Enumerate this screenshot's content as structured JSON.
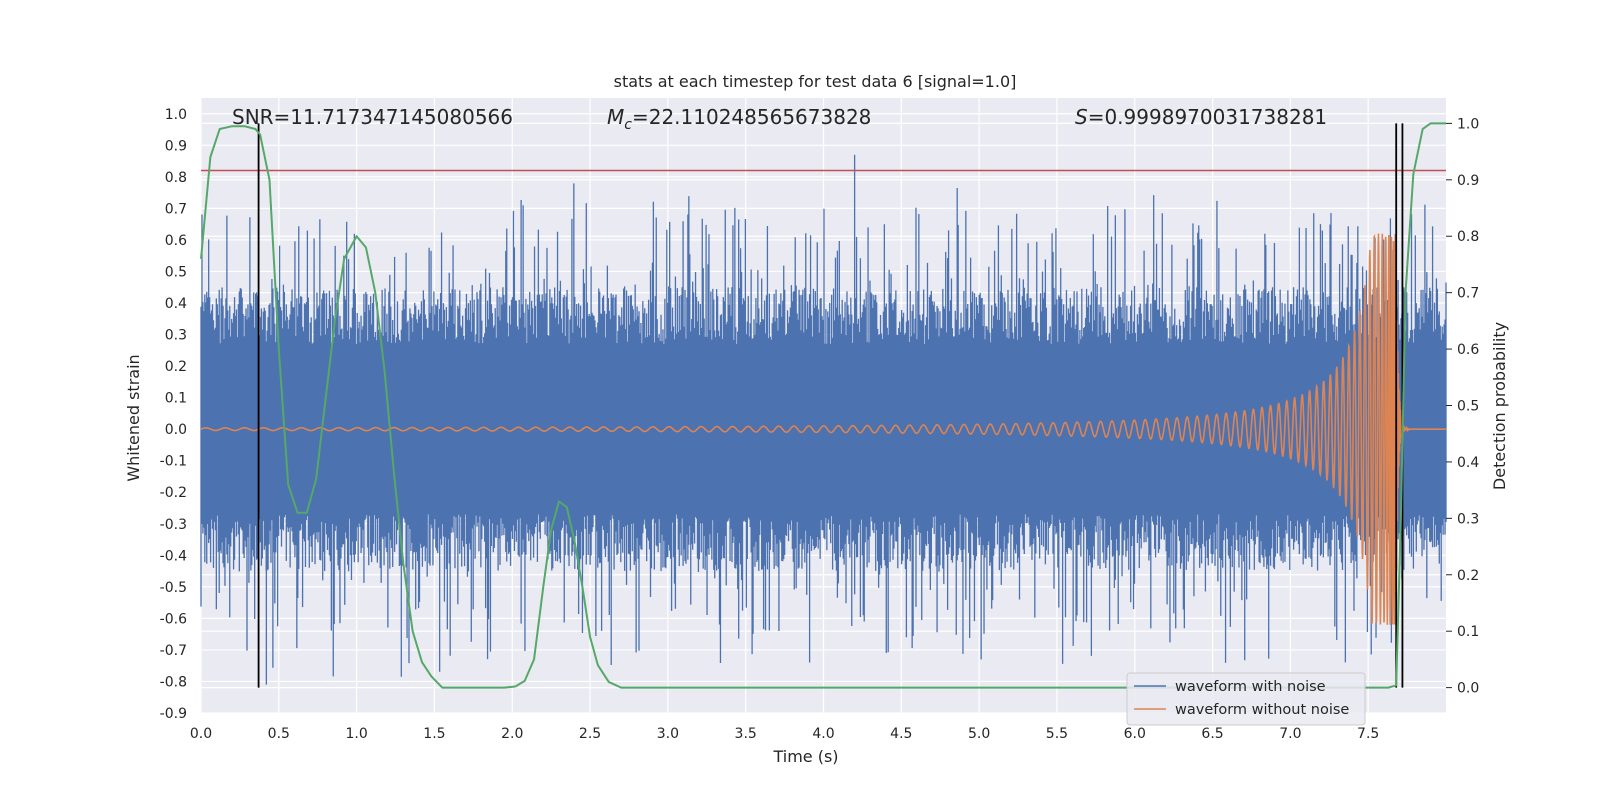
{
  "chart_data": {
    "type": "line",
    "title": "stats at each timestep for test data 6 [signal=1.0]",
    "xlabel": "Time (s)",
    "ylabel": "Whitened strain",
    "y2label": "Detection probability",
    "xlim": [
      0.0,
      8.0
    ],
    "ylim": [
      -0.9,
      1.05
    ],
    "y2lim": [
      -0.045,
      1.045
    ],
    "xticks": [
      "0.0",
      "0.5",
      "1.0",
      "1.5",
      "2.0",
      "2.5",
      "3.0",
      "3.5",
      "4.0",
      "4.5",
      "5.0",
      "5.5",
      "6.0",
      "6.5",
      "7.0",
      "7.5"
    ],
    "yticks": [
      "1.0",
      "0.9",
      "0.8",
      "0.7",
      "0.6",
      "0.5",
      "0.4",
      "0.3",
      "0.2",
      "0.1",
      "0.0",
      "-0.1",
      "-0.2",
      "-0.3",
      "-0.4",
      "-0.5",
      "-0.6",
      "-0.7",
      "-0.8",
      "-0.9"
    ],
    "y2ticks": [
      "1.0",
      "0.9",
      "0.8",
      "0.7",
      "0.6",
      "0.5",
      "0.4",
      "0.3",
      "0.2",
      "0.1",
      "0.0"
    ],
    "annotations": {
      "snr_label": "SNR=11.717347145080566",
      "mc_symbol": "M",
      "mc_subscript": "c",
      "mc_value": "=22.110248565673828",
      "s_symbol": "S",
      "s_value": "=0.9998970031738281"
    },
    "threshold_y": 0.82,
    "vlines": [
      0.37,
      7.68,
      7.72
    ],
    "series": [
      {
        "name": "waveform with noise",
        "color": "#4c72b0",
        "axis": "left",
        "noise": {
          "band_low": -0.27,
          "band_high": 0.27,
          "min": -0.81,
          "max": 0.87,
          "t_end": 8.0
        }
      },
      {
        "name": "waveform without noise",
        "color": "#dd8452",
        "axis": "left",
        "chirp": {
          "t_merger": 7.68,
          "f0": 8,
          "amp0": 0.004,
          "amp_peak": 0.62,
          "t_end": 8.0
        }
      },
      {
        "name": "detection probability",
        "color": "#55a868",
        "axis": "right",
        "x": [
          0.0,
          0.06,
          0.12,
          0.2,
          0.28,
          0.35,
          0.38,
          0.44,
          0.5,
          0.56,
          0.62,
          0.68,
          0.74,
          0.8,
          0.86,
          0.92,
          1.0,
          1.06,
          1.12,
          1.18,
          1.24,
          1.3,
          1.36,
          1.42,
          1.48,
          1.55,
          1.65,
          1.8,
          1.95,
          2.02,
          2.08,
          2.14,
          2.2,
          2.25,
          2.3,
          2.35,
          2.4,
          2.45,
          2.5,
          2.55,
          2.62,
          2.7,
          3.0,
          4.0,
          5.0,
          6.0,
          7.0,
          7.5,
          7.63,
          7.68,
          7.71,
          7.74,
          7.79,
          7.85,
          7.9,
          7.95,
          8.0
        ],
        "y": [
          0.76,
          0.94,
          0.99,
          0.995,
          0.995,
          0.99,
          0.98,
          0.9,
          0.6,
          0.36,
          0.31,
          0.31,
          0.37,
          0.51,
          0.65,
          0.76,
          0.8,
          0.78,
          0.7,
          0.56,
          0.38,
          0.22,
          0.1,
          0.045,
          0.02,
          0.0,
          0.0,
          0.0,
          0.0,
          0.002,
          0.012,
          0.05,
          0.18,
          0.28,
          0.33,
          0.32,
          0.26,
          0.18,
          0.09,
          0.04,
          0.01,
          0.0,
          0.0,
          0.0,
          0.0,
          0.0,
          0.0,
          0.0,
          0.0,
          0.004,
          0.3,
          0.7,
          0.91,
          0.99,
          1.0,
          1.0,
          1.0
        ]
      }
    ],
    "legend": {
      "position": "lower-right",
      "entries": [
        "waveform with noise",
        "waveform without noise"
      ]
    }
  }
}
